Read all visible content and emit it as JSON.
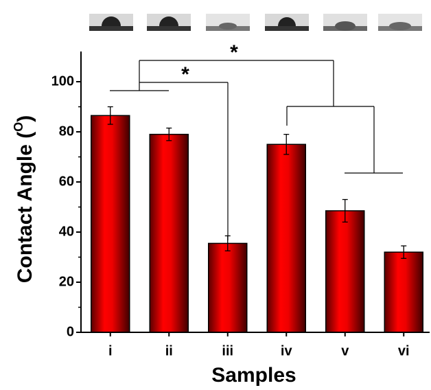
{
  "chart_data": {
    "type": "bar",
    "y_label": "Contact Angle (",
    "y_label_superscript": "O",
    "y_label_end": ")",
    "x_label": "Samples",
    "categories": [
      "i",
      "ii",
      "iii",
      "iv",
      "v",
      "vi"
    ],
    "values": [
      86.5,
      79,
      35.5,
      75,
      48.5,
      32
    ],
    "errors": [
      3.5,
      2.5,
      3,
      4,
      4.5,
      2.5
    ],
    "color": "#ff0000",
    "ylim": [
      0,
      110
    ],
    "yticks": [
      0,
      20,
      40,
      60,
      80,
      100
    ],
    "yticks_minor": [
      10,
      30,
      50,
      70,
      90
    ],
    "annotations": [
      "*",
      "*"
    ]
  }
}
